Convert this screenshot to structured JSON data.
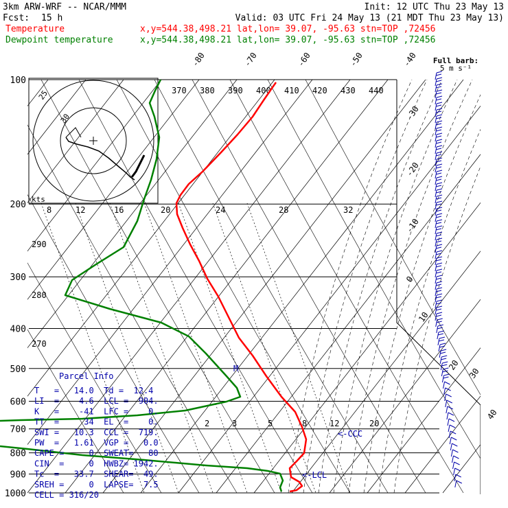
{
  "header": {
    "model": "3km ARW-WRF -- NCAR/MMM",
    "init": "Init: 12 UTC Thu 23 May 13",
    "fcst_label": "Fcst:",
    "fcst_value": "15 h",
    "valid": "Valid: 03 UTC Fri 24 May 13 (21 MDT Thu 23 May 13)"
  },
  "legend": [
    {
      "name": "Temperature",
      "info": "x,y=544.38,498.21   lat,lon= 39.07, -95.63   stn=TOP ,72456",
      "color": "#ff0000"
    },
    {
      "name": "Dewpoint temperature",
      "info": "x,y=544.38,498.21   lat,lon= 39.07, -95.63   stn=TOP ,72456",
      "color": "#008000"
    }
  ],
  "barb_legend": {
    "title": "Full barb:",
    "value": "5 m s⁻¹"
  },
  "parcel_info": {
    "title": "Parcel Info",
    "rows": [
      "T   =   14.0  Td =  12.4",
      "LI  =    4.6  LCL =  904.",
      "K   =    -41  LFC =    0.",
      "TT  =     34  EL  =    0.",
      "SWI =   10.3  CCL =  719.",
      "PW  =   1.61  VGP =   0.0",
      "CAPE =     0  SWEAT=   80",
      "CIN  =     0  HWBZ= 1942.",
      "Tc  =   33.7  SHEAR=  49.",
      "SREH =     0  LAPSE=  7.5",
      "CELL = 316/20"
    ]
  },
  "annotations": {
    "ccc": "<-CCC",
    "lcl": "<-LCL",
    "m": "M"
  },
  "hodograph": {
    "units": "kts",
    "ring_labels": [
      "25",
      "30"
    ]
  },
  "chart_data": {
    "type": "line",
    "title": "",
    "pressure_levels": [
      "100",
      "200",
      "300",
      "400",
      "500",
      "600",
      "700",
      "800",
      "900",
      "1000"
    ],
    "pressure_values": [
      100,
      200,
      300,
      400,
      500,
      600,
      700,
      800,
      900,
      1000
    ],
    "temp_isotherm_labels": [
      "-80",
      "-70",
      "-60",
      "-50",
      "-40",
      "-30",
      "-20",
      "-10",
      "0",
      "10",
      "20",
      "30",
      "40"
    ],
    "theta_labels": [
      "370",
      "380",
      "390",
      "400",
      "410",
      "420",
      "430",
      "440"
    ],
    "theta_left_labels": [
      "290",
      "280",
      "270"
    ],
    "mixing_ratio_upper": [
      "8",
      "12",
      "16",
      "20",
      "24",
      "28",
      "32"
    ],
    "mixing_ratio_lower": [
      "2",
      "3",
      "5",
      "8",
      "12",
      "20"
    ],
    "series": [
      {
        "name": "Temperature",
        "color": "#ff0000",
        "points": [
          [
            402,
            120
          ],
          [
            395,
            130
          ],
          [
            384,
            146
          ],
          [
            368,
            170
          ],
          [
            346,
            196
          ],
          [
            322,
            222
          ],
          [
            295,
            250
          ],
          [
            275,
            268
          ],
          [
            263,
            284
          ],
          [
            257,
            296
          ],
          [
            258,
            312
          ],
          [
            266,
            332
          ],
          [
            277,
            356
          ],
          [
            290,
            380
          ],
          [
            302,
            406
          ],
          [
            318,
            432
          ],
          [
            335,
            466
          ],
          [
            348,
            492
          ],
          [
            368,
            518
          ],
          [
            388,
            548
          ],
          [
            410,
            578
          ],
          [
            430,
            600
          ],
          [
            440,
            622
          ],
          [
            446,
            640
          ],
          [
            443,
            660
          ],
          [
            432,
            672
          ],
          [
            422,
            682
          ],
          [
            424,
            695
          ],
          [
            436,
            702
          ],
          [
            440,
            708
          ],
          [
            432,
            714
          ],
          [
            422,
            716
          ]
        ]
      },
      {
        "name": "Dewpoint temperature",
        "color": "#008000",
        "points": [
          [
            234,
            116
          ],
          [
            226,
            132
          ],
          [
            218,
            150
          ],
          [
            225,
            170
          ],
          [
            232,
            200
          ],
          [
            228,
            232
          ],
          [
            220,
            262
          ],
          [
            210,
            290
          ],
          [
            200,
            322
          ],
          [
            180,
            360
          ],
          [
            140,
            385
          ],
          [
            105,
            408
          ],
          [
            95,
            430
          ],
          [
            160,
            450
          ],
          [
            235,
            470
          ],
          [
            275,
            490
          ],
          [
            300,
            515
          ],
          [
            330,
            548
          ],
          [
            345,
            565
          ],
          [
            350,
            578
          ],
          [
            330,
            585
          ],
          [
            270,
            598
          ],
          [
            200,
            605
          ],
          [
            120,
            610
          ],
          [
            30,
            612
          ],
          [
            0,
            613
          ]
        ]
      },
      {
        "name": "Dewpoint temperature lower",
        "color": "#008000",
        "points": [
          [
            0,
            650
          ],
          [
            40,
            654
          ],
          [
            120,
            663
          ],
          [
            210,
            670
          ],
          [
            300,
            678
          ],
          [
            360,
            682
          ],
          [
            390,
            686
          ],
          [
            408,
            690
          ],
          [
            412,
            700
          ],
          [
            408,
            710
          ],
          [
            410,
            716
          ]
        ]
      }
    ]
  }
}
